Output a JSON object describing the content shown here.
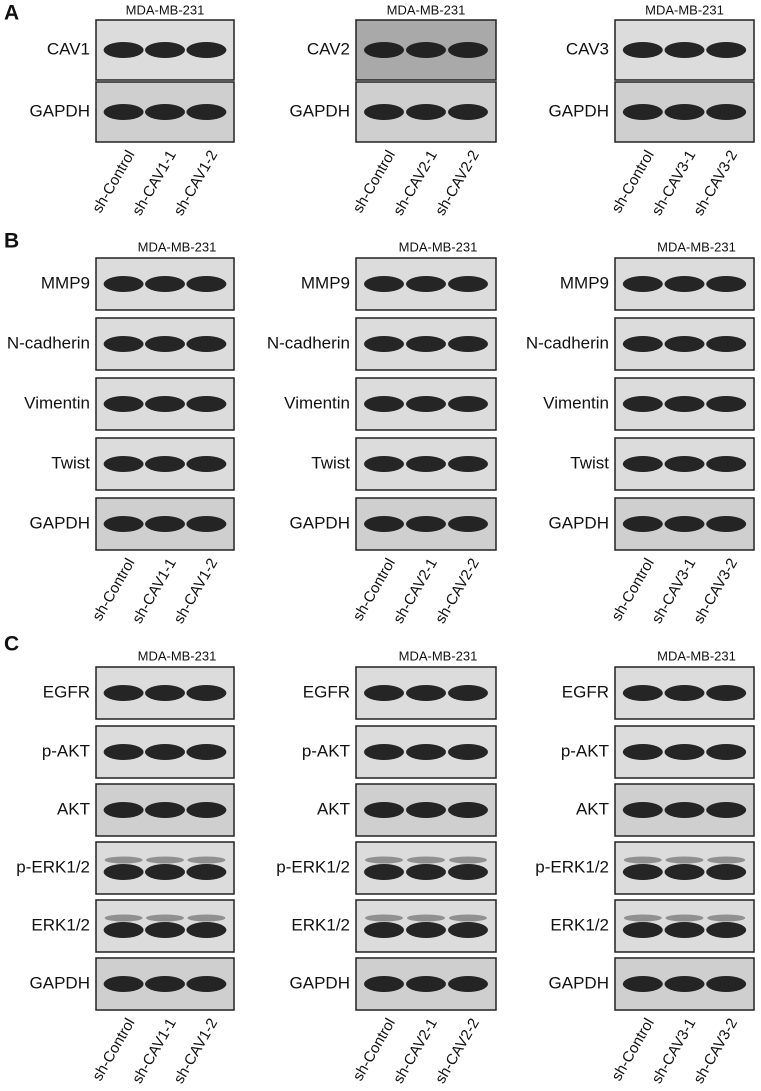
{
  "panels": [
    {
      "label": "A",
      "blots": [
        {
          "cell_line": "MDA-MB-231",
          "rows": [
            "CAV1",
            "GAPDH"
          ],
          "lanes": [
            "sh-Control",
            "sh-CAV1-1",
            "sh-CAV1-2"
          ]
        },
        {
          "cell_line": "MDA-MB-231",
          "rows": [
            "CAV2",
            "GAPDH"
          ],
          "lanes": [
            "sh-Control",
            "sh-CAV2-1",
            "sh-CAV2-2"
          ]
        },
        {
          "cell_line": "MDA-MB-231",
          "rows": [
            "CAV3",
            "GAPDH"
          ],
          "lanes": [
            "sh-Control",
            "sh-CAV3-1",
            "sh-CAV3-2"
          ]
        }
      ]
    },
    {
      "label": "B",
      "blots": [
        {
          "cell_line": "MDA-MB-231",
          "rows": [
            "MMP9",
            "N-cadherin",
            "Vimentin",
            "Twist",
            "GAPDH"
          ],
          "lanes": [
            "sh-Control",
            "sh-CAV1-1",
            "sh-CAV1-2"
          ]
        },
        {
          "cell_line": "MDA-MB-231",
          "rows": [
            "MMP9",
            "N-cadherin",
            "Vimentin",
            "Twist",
            "GAPDH"
          ],
          "lanes": [
            "sh-Control",
            "sh-CAV2-1",
            "sh-CAV2-2"
          ]
        },
        {
          "cell_line": "MDA-MB-231",
          "rows": [
            "MMP9",
            "N-cadherin",
            "Vimentin",
            "Twist",
            "GAPDH"
          ],
          "lanes": [
            "sh-Control",
            "sh-CAV3-1",
            "sh-CAV3-2"
          ]
        }
      ]
    },
    {
      "label": "C",
      "blots": [
        {
          "cell_line": "MDA-MB-231",
          "rows": [
            "EGFR",
            "p-AKT",
            "AKT",
            "p-ERK1/2",
            "ERK1/2",
            "GAPDH"
          ],
          "lanes": [
            "sh-Control",
            "sh-CAV1-1",
            "sh-CAV1-2"
          ]
        },
        {
          "cell_line": "MDA-MB-231",
          "rows": [
            "EGFR",
            "p-AKT",
            "AKT",
            "p-ERK1/2",
            "ERK1/2",
            "GAPDH"
          ],
          "lanes": [
            "sh-Control",
            "sh-CAV2-1",
            "sh-CAV2-2"
          ]
        },
        {
          "cell_line": "MDA-MB-231",
          "rows": [
            "EGFR",
            "p-AKT",
            "AKT",
            "p-ERK1/2",
            "ERK1/2",
            "GAPDH"
          ],
          "lanes": [
            "sh-Control",
            "sh-CAV3-1",
            "sh-CAV3-2"
          ]
        }
      ]
    }
  ]
}
